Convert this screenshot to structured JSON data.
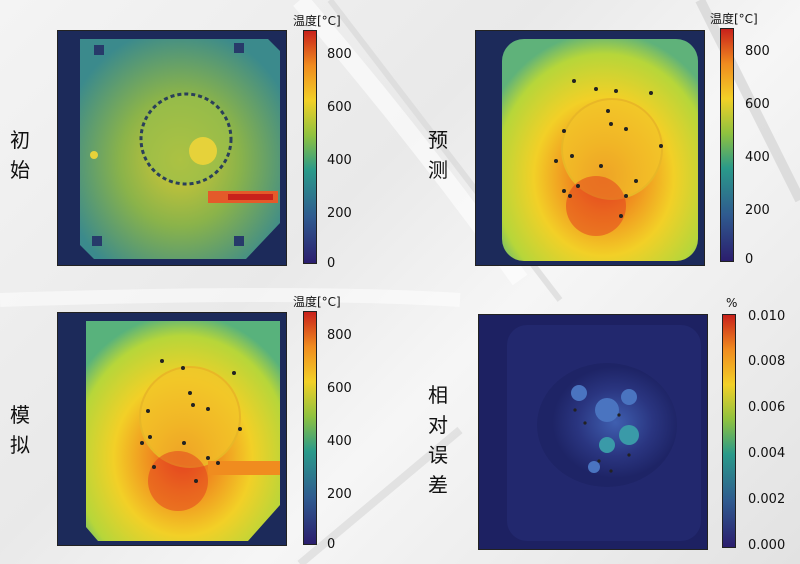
{
  "labels": {
    "initial": "初\n始",
    "predicted": "预\n测",
    "simulated": "模\n拟",
    "relative_error": "相\n对\n误\n差"
  },
  "colorbars": {
    "temp_title": "温度[°C]",
    "temp_ticks": [
      "800",
      "600",
      "400",
      "200",
      "0"
    ],
    "err_title": "%",
    "err_ticks": [
      "0.010",
      "0.008",
      "0.006",
      "0.004",
      "0.002",
      "0.000"
    ]
  },
  "colors": {
    "cold": "#2b1e6e",
    "mid": "#2a9a8a",
    "warm": "#f2d027",
    "hot": "#c8211b"
  }
}
